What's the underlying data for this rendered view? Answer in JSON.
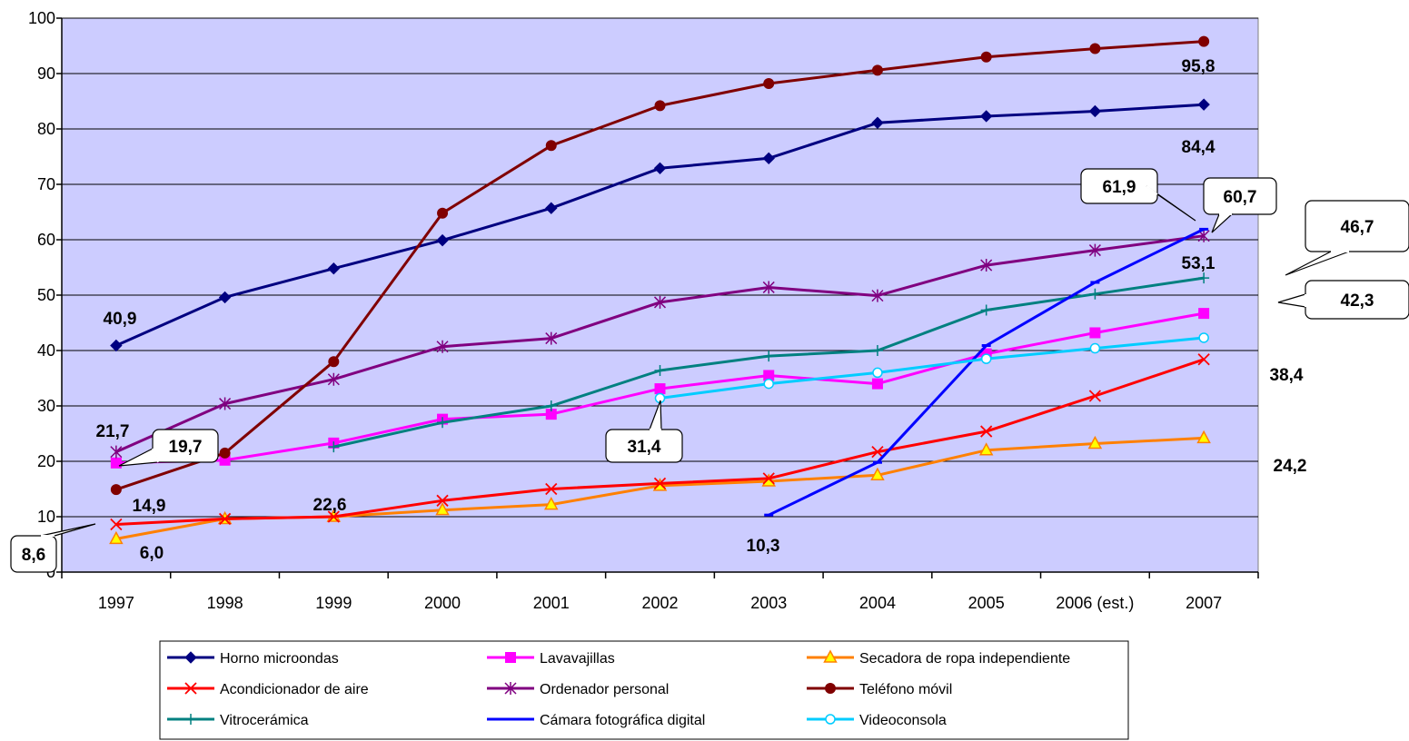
{
  "chart_data": {
    "type": "line",
    "categories": [
      "1997",
      "1998",
      "1999",
      "2000",
      "2001",
      "2002",
      "2003",
      "2004",
      "2005",
      "2006 (est.)",
      "2007"
    ],
    "ylim": [
      0,
      100
    ],
    "yticks": [
      0,
      10,
      20,
      30,
      40,
      50,
      60,
      70,
      80,
      90,
      100
    ],
    "grid": "horizontal",
    "legend_position": "bottom",
    "plot_background": "#ccccff",
    "series": [
      {
        "name": "Horno microondas",
        "color": "#000080",
        "marker": "diamond",
        "values": [
          40.9,
          49.6,
          54.8,
          59.9,
          65.7,
          72.9,
          74.7,
          81.1,
          82.3,
          83.2,
          84.4
        ]
      },
      {
        "name": "Lavavajillas",
        "color": "#ff00ff",
        "marker": "square",
        "values": [
          19.7,
          20.2,
          23.3,
          27.6,
          28.5,
          33.1,
          35.5,
          34.0,
          39.4,
          43.2,
          46.7
        ]
      },
      {
        "name": "Secadora de ropa independiente",
        "color": "#ff8000",
        "marker": "triangle",
        "values": [
          6.0,
          9.6,
          10.0,
          11.2,
          12.2,
          15.6,
          16.4,
          17.5,
          22.0,
          23.2,
          24.2
        ]
      },
      {
        "name": "Acondicionador de aire",
        "color": "#ff0000",
        "marker": "x",
        "values": [
          8.6,
          9.6,
          10.0,
          12.9,
          15.0,
          16.0,
          16.9,
          21.7,
          25.4,
          31.8,
          38.4
        ]
      },
      {
        "name": "Ordenador personal",
        "color": "#800080",
        "marker": "star",
        "values": [
          21.7,
          30.4,
          34.8,
          40.7,
          42.2,
          48.7,
          51.4,
          49.9,
          55.4,
          58.1,
          60.7
        ]
      },
      {
        "name": "Teléfono móvil",
        "color": "#800000",
        "marker": "circle",
        "values": [
          14.9,
          21.5,
          38.0,
          64.8,
          77.0,
          84.2,
          88.2,
          90.6,
          93.0,
          94.5,
          95.8
        ]
      },
      {
        "name": "Vitrocerámica",
        "color": "#008080",
        "marker": "plus",
        "values": [
          null,
          null,
          22.6,
          27.0,
          30.0,
          36.4,
          39.0,
          40.0,
          47.3,
          50.2,
          53.1
        ]
      },
      {
        "name": "Cámara fotográfica digital",
        "color": "#0000ff",
        "marker": "dash",
        "values": [
          null,
          null,
          null,
          null,
          null,
          null,
          10.3,
          19.8,
          40.9,
          52.3,
          61.9
        ]
      },
      {
        "name": "Videoconsola",
        "color": "#00ccff",
        "marker": "circle-open",
        "values": [
          null,
          null,
          null,
          null,
          null,
          31.4,
          34.0,
          36.0,
          38.5,
          40.4,
          42.3
        ]
      }
    ],
    "data_labels": [
      {
        "text": "95,8",
        "series": "Teléfono móvil",
        "index": 10,
        "callout": false
      },
      {
        "text": "84,4",
        "series": "Horno microondas",
        "index": 10,
        "callout": false
      },
      {
        "text": "40,9",
        "series": "Horno microondas",
        "index": 0,
        "callout": false
      },
      {
        "text": "21,7",
        "series": "Ordenador personal",
        "index": 0,
        "callout": false
      },
      {
        "text": "14,9",
        "series": "Teléfono móvil",
        "index": 0,
        "callout": false
      },
      {
        "text": "6,0",
        "series": "Secadora de ropa independiente",
        "index": 0,
        "callout": false
      },
      {
        "text": "22,6",
        "series": "Vitrocerámica",
        "index": 2,
        "callout": false
      },
      {
        "text": "10,3",
        "series": "Cámara fotográfica digital",
        "index": 6,
        "callout": false
      },
      {
        "text": "53,1",
        "series": "Vitrocerámica",
        "index": 10,
        "callout": false
      },
      {
        "text": "38,4",
        "series": "Acondicionador de aire",
        "index": 10,
        "callout": false
      },
      {
        "text": "24,2",
        "series": "Secadora de ropa independiente",
        "index": 10,
        "callout": false
      },
      {
        "text": "61,9",
        "series": "Cámara fotográfica digital",
        "index": 10,
        "callout": true
      },
      {
        "text": "60,7",
        "series": "Ordenador personal",
        "index": 10,
        "callout": true
      },
      {
        "text": "46,7",
        "series": "Lavavajillas",
        "index": 10,
        "callout": true
      },
      {
        "text": "42,3",
        "series": "Videoconsola",
        "index": 10,
        "callout": true
      },
      {
        "text": "19,7",
        "series": "Lavavajillas",
        "index": 0,
        "callout": true
      },
      {
        "text": "8,6",
        "series": "Acondicionador de aire",
        "index": 0,
        "callout": true
      },
      {
        "text": "31,4",
        "series": "Videoconsola",
        "index": 5,
        "callout": true
      }
    ]
  }
}
